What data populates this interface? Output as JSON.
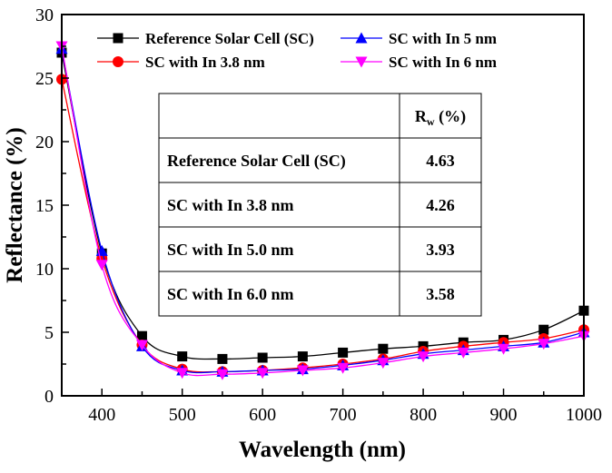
{
  "chart_data": {
    "type": "line",
    "xlabel": "Wavelength (nm)",
    "ylabel": "Reflectance (%)",
    "xlim": [
      350,
      1000
    ],
    "ylim": [
      0,
      30
    ],
    "xticks": [
      400,
      500,
      600,
      700,
      800,
      900,
      1000
    ],
    "yticks": [
      0,
      5,
      10,
      15,
      20,
      25,
      30
    ],
    "grid": false,
    "legend_placement": "top",
    "x": [
      350,
      400,
      450,
      500,
      550,
      600,
      650,
      700,
      750,
      800,
      850,
      900,
      950,
      1000
    ],
    "series": [
      {
        "name": "Reference Solar Cell (SC)",
        "color": "#000000",
        "marker": "square",
        "values": [
          27.0,
          11.2,
          4.7,
          3.1,
          2.9,
          3.0,
          3.1,
          3.4,
          3.7,
          3.9,
          4.2,
          4.4,
          5.2,
          6.7
        ]
      },
      {
        "name": "SC with In 3.8 nm",
        "color": "#ff0000",
        "marker": "circle",
        "values": [
          24.9,
          10.8,
          4.0,
          2.1,
          1.9,
          2.0,
          2.2,
          2.5,
          2.9,
          3.5,
          3.9,
          4.2,
          4.5,
          5.2
        ]
      },
      {
        "name": "SC with In 5 nm",
        "color": "#0000ff",
        "marker": "triangle-up",
        "values": [
          27.3,
          11.4,
          3.9,
          2.0,
          1.9,
          2.0,
          2.1,
          2.4,
          2.8,
          3.3,
          3.6,
          3.9,
          4.2,
          5.0
        ]
      },
      {
        "name": "SC with In 6 nm",
        "color": "#ff00ff",
        "marker": "triangle-down",
        "values": [
          27.5,
          10.3,
          4.0,
          1.8,
          1.7,
          1.8,
          2.0,
          2.2,
          2.6,
          3.1,
          3.4,
          3.7,
          4.1,
          4.7
        ]
      }
    ],
    "legend_order": [
      0,
      2,
      1,
      3
    ],
    "table": {
      "header": [
        "",
        "R_w (%)"
      ],
      "header_main": "R",
      "header_sub": "w",
      "header_unit": " (%)",
      "rows": [
        [
          "Reference Solar Cell (SC)",
          "4.63"
        ],
        [
          "SC with In 3.8 nm",
          "4.26"
        ],
        [
          "SC with In 5.0 nm",
          "3.93"
        ],
        [
          "SC with In 6.0 nm",
          "3.58"
        ]
      ]
    }
  }
}
